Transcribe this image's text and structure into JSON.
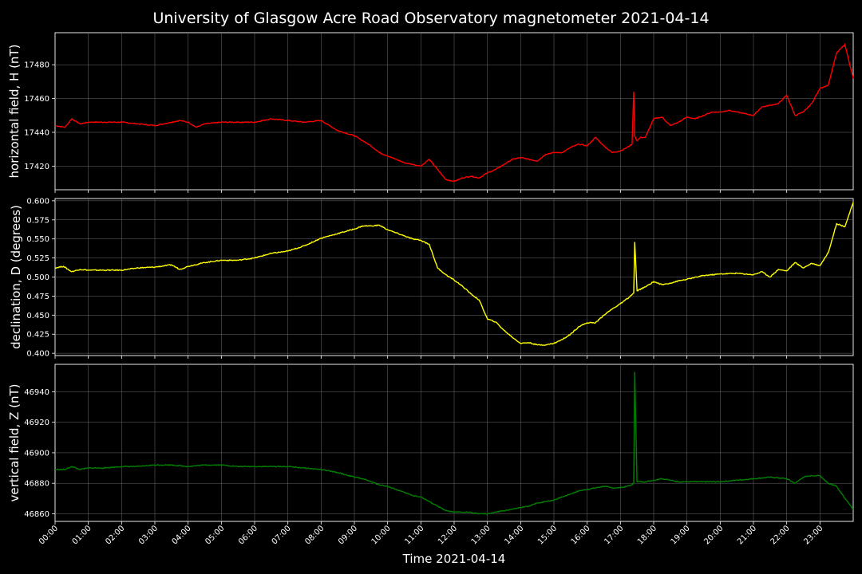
{
  "chart_data": {
    "type": "line",
    "title": "University of Glasgow Acre Road Observatory magnetometer 2021-04-14",
    "xlabel": "Time 2021-04-14",
    "x_tick_labels": [
      "00:00",
      "01:00",
      "02:00",
      "03:00",
      "04:00",
      "05:00",
      "06:00",
      "07:00",
      "08:00",
      "09:00",
      "10:00",
      "11:00",
      "12:00",
      "13:00",
      "14:00",
      "15:00",
      "16:00",
      "17:00",
      "18:00",
      "19:00",
      "20:00",
      "21:00",
      "22:00",
      "23:00"
    ],
    "xlim_hours": [
      0,
      24
    ],
    "grid": true,
    "panels": [
      {
        "ylabel": "horizontal field, H (nT)",
        "color": "#ff0000",
        "ylim": [
          17406,
          17499
        ],
        "y_ticks": [
          17420,
          17440,
          17460,
          17480
        ],
        "series": {
          "x_hours": [
            0.0,
            0.3,
            0.5,
            0.75,
            1.0,
            1.5,
            2.0,
            2.5,
            3.0,
            3.5,
            3.75,
            4.0,
            4.25,
            4.5,
            5.0,
            5.5,
            6.0,
            6.5,
            7.0,
            7.5,
            8.0,
            8.25,
            8.5,
            9.0,
            9.5,
            9.75,
            10.0,
            10.25,
            10.5,
            10.75,
            11.0,
            11.25,
            11.5,
            11.75,
            12.0,
            12.25,
            12.5,
            12.75,
            13.0,
            13.25,
            13.5,
            13.75,
            14.0,
            14.25,
            14.5,
            14.75,
            15.0,
            15.25,
            15.5,
            15.75,
            16.0,
            16.25,
            16.5,
            16.75,
            17.0,
            17.2,
            17.35,
            17.4,
            17.43,
            17.5,
            17.6,
            17.75,
            18.0,
            18.25,
            18.5,
            18.75,
            19.0,
            19.25,
            19.5,
            19.75,
            20.0,
            20.25,
            20.5,
            20.75,
            21.0,
            21.25,
            21.5,
            21.75,
            22.0,
            22.25,
            22.5,
            22.75,
            23.0,
            23.25,
            23.5,
            23.75,
            24.0
          ],
          "values": [
            17444,
            17443,
            17448,
            17445,
            17446,
            17446,
            17446,
            17445,
            17444,
            17446,
            17447,
            17446,
            17443,
            17445,
            17446,
            17446,
            17446,
            17448,
            17447,
            17446,
            17447,
            17444,
            17441,
            17438,
            17432,
            17428,
            17426,
            17424,
            17422,
            17421,
            17420,
            17424,
            17418,
            17412,
            17411,
            17413,
            17414,
            17413,
            17416,
            17418,
            17421,
            17424,
            17425,
            17424,
            17423,
            17427,
            17428,
            17428,
            17431,
            17433,
            17432,
            17437,
            17432,
            17428,
            17429,
            17431,
            17433,
            17464,
            17438,
            17435,
            17437,
            17437,
            17448,
            17449,
            17444,
            17446,
            17449,
            17448,
            17450,
            17452,
            17452,
            17453,
            17452,
            17451,
            17450,
            17455,
            17456,
            17457,
            17462,
            17450,
            17452,
            17457,
            17466,
            17468,
            17487,
            17492,
            17472
          ]
        }
      },
      {
        "ylabel": "declination, D (degrees)",
        "color": "#ffff00",
        "ylim": [
          0.397,
          0.603
        ],
        "y_ticks": [
          0.4,
          0.425,
          0.45,
          0.475,
          0.5,
          0.525,
          0.55,
          0.575,
          0.6
        ],
        "series": {
          "x_hours": [
            0.0,
            0.25,
            0.5,
            0.75,
            1.0,
            1.5,
            2.0,
            2.5,
            3.0,
            3.5,
            3.75,
            4.0,
            4.5,
            5.0,
            5.5,
            6.0,
            6.5,
            7.0,
            7.5,
            8.0,
            8.5,
            9.0,
            9.25,
            9.5,
            9.75,
            10.0,
            10.25,
            10.5,
            10.75,
            11.0,
            11.25,
            11.5,
            11.75,
            12.0,
            12.25,
            12.5,
            12.75,
            13.0,
            13.25,
            13.5,
            13.75,
            14.0,
            14.25,
            14.5,
            14.75,
            15.0,
            15.25,
            15.5,
            15.75,
            16.0,
            16.25,
            16.5,
            16.75,
            17.0,
            17.25,
            17.4,
            17.43,
            17.5,
            17.75,
            18.0,
            18.25,
            18.5,
            18.75,
            19.0,
            19.5,
            20.0,
            20.5,
            21.0,
            21.25,
            21.5,
            21.75,
            22.0,
            22.25,
            22.5,
            22.75,
            23.0,
            23.25,
            23.5,
            23.75,
            24.0
          ],
          "values": [
            0.512,
            0.514,
            0.507,
            0.51,
            0.509,
            0.509,
            0.509,
            0.512,
            0.513,
            0.516,
            0.51,
            0.514,
            0.519,
            0.522,
            0.522,
            0.525,
            0.531,
            0.534,
            0.541,
            0.551,
            0.557,
            0.563,
            0.567,
            0.567,
            0.568,
            0.562,
            0.558,
            0.554,
            0.55,
            0.548,
            0.543,
            0.512,
            0.503,
            0.496,
            0.488,
            0.478,
            0.47,
            0.445,
            0.441,
            0.43,
            0.421,
            0.413,
            0.414,
            0.411,
            0.411,
            0.413,
            0.418,
            0.425,
            0.435,
            0.44,
            0.44,
            0.45,
            0.458,
            0.465,
            0.473,
            0.479,
            0.546,
            0.482,
            0.487,
            0.494,
            0.49,
            0.492,
            0.495,
            0.497,
            0.502,
            0.504,
            0.505,
            0.503,
            0.507,
            0.5,
            0.51,
            0.508,
            0.519,
            0.512,
            0.518,
            0.515,
            0.532,
            0.57,
            0.566,
            0.598
          ]
        }
      },
      {
        "ylabel": "vertical field, Z (nT)",
        "color": "#008000",
        "ylim": [
          46855,
          46958
        ],
        "y_ticks": [
          46860,
          46880,
          46900,
          46920,
          46940
        ],
        "series": {
          "x_hours": [
            0.0,
            0.3,
            0.5,
            0.75,
            1.0,
            1.5,
            2.0,
            2.5,
            3.0,
            3.5,
            4.0,
            4.5,
            5.0,
            5.5,
            6.0,
            6.5,
            7.0,
            7.5,
            8.0,
            8.5,
            9.0,
            9.25,
            9.5,
            9.75,
            10.0,
            10.25,
            10.5,
            10.75,
            11.0,
            11.25,
            11.5,
            11.75,
            12.0,
            12.25,
            12.5,
            12.75,
            13.0,
            13.25,
            13.5,
            13.75,
            14.0,
            14.25,
            14.5,
            14.75,
            15.0,
            15.25,
            15.5,
            15.75,
            16.0,
            16.25,
            16.5,
            16.75,
            17.0,
            17.2,
            17.35,
            17.4,
            17.43,
            17.5,
            17.75,
            18.0,
            18.25,
            18.5,
            18.75,
            19.0,
            19.5,
            20.0,
            20.5,
            21.0,
            21.5,
            22.0,
            22.25,
            22.5,
            22.75,
            23.0,
            23.25,
            23.5,
            23.75,
            24.0
          ],
          "values": [
            46889,
            46889,
            46891,
            46889,
            46890,
            46890,
            46891,
            46891,
            46892,
            46892,
            46891,
            46892,
            46892,
            46891,
            46891,
            46891,
            46891,
            46890,
            46889,
            46887,
            46884,
            46883,
            46881,
            46879,
            46878,
            46876,
            46874,
            46872,
            46871,
            46868,
            46865,
            46862,
            46861,
            46861,
            46861,
            46860,
            46860,
            46861,
            46862,
            46863,
            46864,
            46865,
            46867,
            46868,
            46869,
            46871,
            46873,
            46875,
            46876,
            46877,
            46878,
            46877,
            46877,
            46878,
            46879,
            46880,
            46953,
            46881,
            46881,
            46882,
            46883,
            46882,
            46881,
            46881,
            46881,
            46881,
            46882,
            46883,
            46884,
            46883,
            46880,
            46884,
            46885,
            46885,
            46880,
            46878,
            46870,
            46863
          ]
        }
      }
    ]
  }
}
